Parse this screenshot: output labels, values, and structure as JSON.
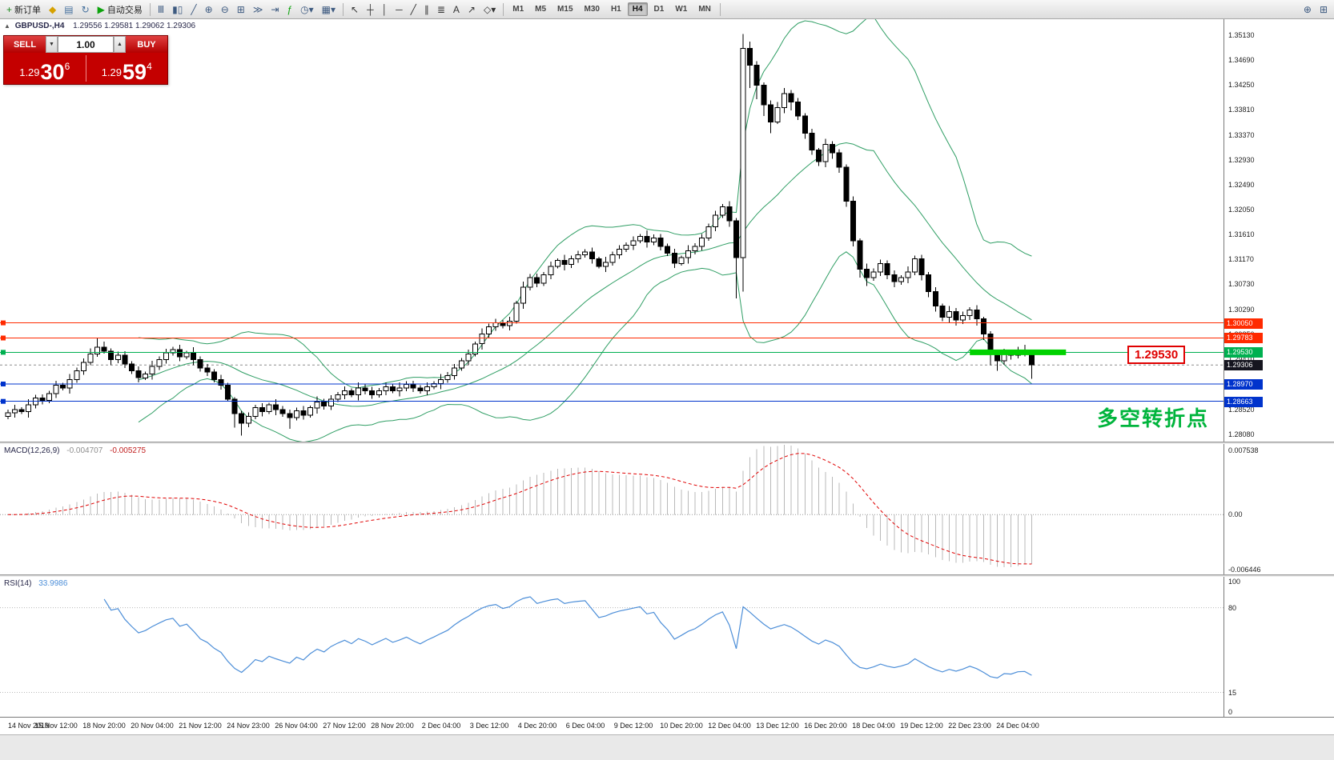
{
  "toolbar": {
    "groups": [
      [
        {
          "name": "new-order-button",
          "icon": "new-order-icon",
          "glyph": "+",
          "color": "#1e8a1e",
          "label": "新订单"
        },
        {
          "name": "chart-window-button",
          "icon": "chart-window-icon",
          "glyph": "◆",
          "color": "#d6a100"
        },
        {
          "name": "profiles-button",
          "icon": "profiles-icon",
          "glyph": "▤",
          "color": "#46719e"
        },
        {
          "name": "refresh-button",
          "icon": "refresh-icon",
          "glyph": "↻",
          "color": "#46719e"
        },
        {
          "name": "autotrading-button",
          "icon": "autotrading-icon",
          "glyph": "▶",
          "color": "#0ca30c",
          "label": "自动交易"
        }
      ],
      [
        {
          "name": "bar-chart-button",
          "icon": "bar-chart-icon",
          "glyph": "Ⅲ",
          "color": "#3d5a80"
        },
        {
          "name": "candlestick-button",
          "icon": "candlestick-icon",
          "glyph": "▮▯",
          "color": "#3d5a80"
        },
        {
          "name": "line-chart-button",
          "icon": "line-chart-icon",
          "glyph": "╱",
          "color": "#3d5a80"
        },
        {
          "name": "zoom-in-button",
          "icon": "zoom-in-icon",
          "glyph": "⊕",
          "color": "#3d5a80"
        },
        {
          "name": "zoom-out-button",
          "icon": "zoom-out-icon",
          "glyph": "⊖",
          "color": "#3d5a80"
        },
        {
          "name": "tile-windows-button",
          "icon": "tile-windows-icon",
          "glyph": "⊞",
          "color": "#3d5a80"
        },
        {
          "name": "auto-scroll-button",
          "icon": "auto-scroll-icon",
          "glyph": "≫",
          "color": "#3d5a80"
        },
        {
          "name": "chart-shift-button",
          "icon": "chart-shift-icon",
          "glyph": "⇥",
          "color": "#3d5a80"
        },
        {
          "name": "indicators-button",
          "icon": "indicators-icon",
          "glyph": "ƒ",
          "color": "#0ca30c"
        },
        {
          "name": "periods-button",
          "icon": "periods-icon",
          "glyph": "◷▾",
          "color": "#3d5a80"
        },
        {
          "name": "templates-button",
          "icon": "templates-icon",
          "glyph": "▦▾",
          "color": "#3d5a80"
        }
      ],
      [
        {
          "name": "cursor-button",
          "icon": "cursor-icon",
          "glyph": "↖",
          "color": "#333333"
        },
        {
          "name": "crosshair-button",
          "icon": "crosshair-icon",
          "glyph": "┼",
          "color": "#333333"
        },
        {
          "name": "vertical-line-button",
          "icon": "vertical-line-icon",
          "glyph": "│",
          "color": "#333333"
        },
        {
          "name": "horizontal-line-button",
          "icon": "horizontal-line-icon",
          "glyph": "─",
          "color": "#333333"
        },
        {
          "name": "trendline-button",
          "icon": "trendline-icon",
          "glyph": "╱",
          "color": "#333333"
        },
        {
          "name": "channel-button",
          "icon": "channel-icon",
          "glyph": "∥",
          "color": "#333333"
        },
        {
          "name": "fibonacci-button",
          "icon": "fibonacci-icon",
          "glyph": "≣",
          "color": "#333333"
        },
        {
          "name": "text-button",
          "icon": "text-icon",
          "glyph": "A",
          "color": "#333333"
        },
        {
          "name": "arrow-button",
          "icon": "arrow-icon",
          "glyph": "↗",
          "color": "#333333"
        },
        {
          "name": "shapes-button",
          "icon": "shapes-icon",
          "glyph": "◇▾",
          "color": "#333333"
        }
      ]
    ],
    "timeframes": [
      "M1",
      "M5",
      "M15",
      "M30",
      "H1",
      "H4",
      "D1",
      "W1",
      "MN"
    ],
    "active_timeframe": "H4",
    "right_icons": [
      {
        "name": "zoom-tool-button",
        "icon": "magnifier-icon",
        "glyph": "⊕"
      },
      {
        "name": "layout-tool-button",
        "icon": "grid-icon",
        "glyph": "⊞"
      }
    ]
  },
  "trade_panel": {
    "sell_label": "SELL",
    "buy_label": "BUY",
    "volume": "1.00",
    "down_icon": "▼",
    "up_icon": "▲",
    "sell_price": {
      "prefix": "1.29",
      "big": "30",
      "sup": "6"
    },
    "buy_price": {
      "prefix": "1.29",
      "big": "59",
      "sup": "4"
    },
    "panel_color": "#c40000"
  },
  "symbol_line": {
    "collapse_icon": "▲",
    "symbol": "GBPUSD-,H4",
    "values": "1.29556 1.29581 1.29062 1.29306"
  },
  "annotation": {
    "text": "多空转折点",
    "color": "#00b43c"
  },
  "callout": {
    "text": "1.29530"
  },
  "chart_data": {
    "type": "candlestick",
    "symbol": "GBPUSD-",
    "timeframe": "H4",
    "price_scale": 0.0001,
    "ylim": [
      1.27953,
      1.35413
    ],
    "y_ticks": [
      "1.35130",
      "1.34690",
      "1.34250",
      "1.33810",
      "1.33370",
      "1.32930",
      "1.32490",
      "1.32050",
      "1.31610",
      "1.31170",
      "1.30730",
      "1.30290",
      "1.29850",
      "1.29410",
      "1.28970",
      "1.28520",
      "1.28080"
    ],
    "candles": [
      [
        12840,
        12852,
        12835,
        12846
      ],
      [
        12846,
        12860,
        12838,
        12852
      ],
      [
        12852,
        12856,
        12844,
        12848
      ],
      [
        12848,
        12870,
        12838,
        12860
      ],
      [
        12860,
        12878,
        12854,
        12872
      ],
      [
        12872,
        12879,
        12861,
        12868
      ],
      [
        12868,
        12885,
        12863,
        12880
      ],
      [
        12880,
        12903,
        12872,
        12895
      ],
      [
        12895,
        12899,
        12886,
        12890
      ],
      [
        12890,
        12915,
        12880,
        12905
      ],
      [
        12905,
        12926,
        12899,
        12920
      ],
      [
        12920,
        12942,
        12913,
        12935
      ],
      [
        12935,
        12960,
        12930,
        12950
      ],
      [
        12950,
        12979,
        12945,
        12962
      ],
      [
        12962,
        12972,
        12951,
        12955
      ],
      [
        12955,
        12960,
        12930,
        12940
      ],
      [
        12940,
        12954,
        12934,
        12948
      ],
      [
        12948,
        12955,
        12925,
        12932
      ],
      [
        12932,
        12937,
        12915,
        12920
      ],
      [
        12920,
        12928,
        12900,
        12908
      ],
      [
        12908,
        12919,
        12904,
        12915
      ],
      [
        12915,
        12938,
        12905,
        12928
      ],
      [
        12928,
        12946,
        12922,
        12940
      ],
      [
        12940,
        12959,
        12933,
        12952
      ],
      [
        12952,
        12963,
        12947,
        12958
      ],
      [
        12958,
        12966,
        12937,
        12945
      ],
      [
        12945,
        12956,
        12941,
        12952
      ],
      [
        12952,
        12962,
        12930,
        12940
      ],
      [
        12940,
        12946,
        12919,
        12925
      ],
      [
        12925,
        12932,
        12911,
        12918
      ],
      [
        12918,
        12923,
        12900,
        12905
      ],
      [
        12905,
        12913,
        12887,
        12895
      ],
      [
        12895,
        12899,
        12866,
        12870
      ],
      [
        12870,
        12874,
        12820,
        12845
      ],
      [
        12845,
        12850,
        12806,
        12828
      ],
      [
        12828,
        12847,
        12821,
        12840
      ],
      [
        12840,
        12860,
        12835,
        12855
      ],
      [
        12855,
        12863,
        12840,
        12848
      ],
      [
        12848,
        12864,
        12844,
        12860
      ],
      [
        12860,
        12870,
        12842,
        12852
      ],
      [
        12852,
        12858,
        12839,
        12845
      ],
      [
        12845,
        12852,
        12818,
        12838
      ],
      [
        12838,
        12855,
        12833,
        12850
      ],
      [
        12850,
        12858,
        12834,
        12842
      ],
      [
        12842,
        12859,
        12838,
        12855
      ],
      [
        12855,
        12875,
        12845,
        12865
      ],
      [
        12865,
        12871,
        12852,
        12858
      ],
      [
        12858,
        12877,
        12851,
        12870
      ],
      [
        12870,
        12883,
        12865,
        12878
      ],
      [
        12878,
        12893,
        12870,
        12885
      ],
      [
        12885,
        12889,
        12874,
        12878
      ],
      [
        12878,
        12900,
        12868,
        12890
      ],
      [
        12890,
        12896,
        12879,
        12885
      ],
      [
        12885,
        12892,
        12871,
        12878
      ],
      [
        12878,
        12890,
        12873,
        12885
      ],
      [
        12885,
        12900,
        12877,
        12892
      ],
      [
        12892,
        12896,
        12881,
        12885
      ],
      [
        12885,
        12900,
        12875,
        12890
      ],
      [
        12890,
        12902,
        12884,
        12896
      ],
      [
        12896,
        12903,
        12883,
        12890
      ],
      [
        12890,
        12895,
        12880,
        12885
      ],
      [
        12885,
        12900,
        12877,
        12892
      ],
      [
        12892,
        12902,
        12888,
        12898
      ],
      [
        12898,
        12915,
        12888,
        12905
      ],
      [
        12905,
        12918,
        12899,
        12912
      ],
      [
        12912,
        12932,
        12905,
        12925
      ],
      [
        12925,
        12943,
        12920,
        12938
      ],
      [
        12938,
        12958,
        12930,
        12950
      ],
      [
        12950,
        12972,
        12946,
        12968
      ],
      [
        12968,
        12995,
        12958,
        12985
      ],
      [
        12985,
        13004,
        12979,
        12998
      ],
      [
        12998,
        13012,
        12991,
        13005
      ],
      [
        13005,
        13010,
        12995,
        13000
      ],
      [
        13000,
        13016,
        12992,
        13008
      ],
      [
        13008,
        13044,
        13004,
        13040
      ],
      [
        13040,
        13078,
        13030,
        13068
      ],
      [
        13068,
        13091,
        13062,
        13085
      ],
      [
        13085,
        13092,
        13068,
        13075
      ],
      [
        13075,
        13095,
        13070,
        13090
      ],
      [
        13090,
        13113,
        13082,
        13105
      ],
      [
        13105,
        13119,
        13101,
        13115
      ],
      [
        13115,
        13125,
        13098,
        13108
      ],
      [
        13108,
        13124,
        13102,
        13118
      ],
      [
        13118,
        13132,
        13111,
        13125
      ],
      [
        13125,
        13135,
        13120,
        13130
      ],
      [
        13130,
        13138,
        13110,
        13118
      ],
      [
        13118,
        13122,
        13101,
        13105
      ],
      [
        13105,
        13122,
        13095,
        13112
      ],
      [
        13112,
        13131,
        13106,
        13125
      ],
      [
        13125,
        13142,
        13118,
        13135
      ],
      [
        13135,
        13147,
        13130,
        13142
      ],
      [
        13142,
        13158,
        13134,
        13150
      ],
      [
        13150,
        13162,
        13146,
        13158
      ],
      [
        13158,
        13168,
        13138,
        13148
      ],
      [
        13148,
        13161,
        13142,
        13155
      ],
      [
        13155,
        13162,
        13133,
        13140
      ],
      [
        13140,
        13145,
        13123,
        13128
      ],
      [
        13128,
        13136,
        13102,
        13110
      ],
      [
        13110,
        13124,
        13106,
        13120
      ],
      [
        13120,
        13142,
        13110,
        13132
      ],
      [
        13132,
        13146,
        13126,
        13140
      ],
      [
        13140,
        13162,
        13133,
        13155
      ],
      [
        13155,
        13180,
        13150,
        13175
      ],
      [
        13175,
        13203,
        13167,
        13195
      ],
      [
        13195,
        13215,
        13190,
        13210
      ],
      [
        13210,
        13220,
        13175,
        13185
      ],
      [
        13185,
        13190,
        13048,
        13120
      ],
      [
        13120,
        13515,
        13060,
        13490
      ],
      [
        13490,
        13502,
        13420,
        13460
      ],
      [
        13460,
        13467,
        13400,
        13425
      ],
      [
        13425,
        13430,
        13370,
        13390
      ],
      [
        13390,
        13398,
        13340,
        13360
      ],
      [
        13360,
        13395,
        13356,
        13385
      ],
      [
        13385,
        13420,
        13375,
        13410
      ],
      [
        13410,
        13416,
        13380,
        13395
      ],
      [
        13395,
        13402,
        13363,
        13370
      ],
      [
        13370,
        13375,
        13330,
        13340
      ],
      [
        13340,
        13348,
        13302,
        13310
      ],
      [
        13310,
        13314,
        13282,
        13290
      ],
      [
        13290,
        13330,
        13280,
        13320
      ],
      [
        13320,
        13326,
        13295,
        13305
      ],
      [
        13305,
        13312,
        13270,
        13280
      ],
      [
        13280,
        13285,
        13210,
        13220
      ],
      [
        13220,
        13228,
        13140,
        13150
      ],
      [
        13150,
        13154,
        13085,
        13100
      ],
      [
        13100,
        13110,
        13070,
        13085
      ],
      [
        13085,
        13101,
        13079,
        13095
      ],
      [
        13095,
        13117,
        13088,
        13110
      ],
      [
        13110,
        13115,
        13082,
        13090
      ],
      [
        13090,
        13098,
        13068,
        13078
      ],
      [
        13078,
        13089,
        13072,
        13085
      ],
      [
        13085,
        13105,
        13075,
        13095
      ],
      [
        13095,
        13124,
        13089,
        13118
      ],
      [
        13118,
        13125,
        13080,
        13090
      ],
      [
        13090,
        13095,
        13050,
        13060
      ],
      [
        13060,
        13068,
        13025,
        13035
      ],
      [
        13035,
        13039,
        13008,
        13015
      ],
      [
        13015,
        13035,
        13005,
        13025
      ],
      [
        13025,
        13031,
        13000,
        13010
      ],
      [
        13010,
        13025,
        13003,
        13018
      ],
      [
        13018,
        13033,
        13010,
        13028
      ],
      [
        13028,
        13036,
        13000,
        13012
      ],
      [
        13012,
        13016,
        12975,
        12985
      ],
      [
        12985,
        12990,
        12930,
        12950
      ],
      [
        12950,
        12956,
        12920,
        12938
      ],
      [
        12938,
        12959,
        12931,
        12952
      ],
      [
        12952,
        12957,
        12940,
        12948
      ],
      [
        12948,
        12963,
        12942,
        12955
      ],
      [
        12955,
        12966,
        12946,
        12956
      ],
      [
        12956,
        12958,
        12906,
        12931
      ]
    ],
    "lines": [
      {
        "price": 1.3005,
        "label": "1.30050",
        "color": "#ff2a00"
      },
      {
        "price": 1.29783,
        "label": "1.29783",
        "color": "#ff2a00"
      },
      {
        "price": 1.2953,
        "label": "1.29530",
        "color": "#00b050"
      },
      {
        "price": 1.2897,
        "label": "1.28970",
        "color": "#0033cc"
      },
      {
        "price": 1.28663,
        "label": "1.28663",
        "color": "#0033cc"
      }
    ],
    "bid": {
      "price": 1.29306,
      "label": "1.29306",
      "color": "#15151f"
    },
    "highlight": {
      "price": 1.2953,
      "from_candle": 140,
      "to_candle": 154,
      "height": 7,
      "color": "#00d200"
    },
    "x_labels": [
      {
        "t": "14 Nov 2019",
        "i": 0
      },
      {
        "t": "15 Nov 12:00",
        "i": 7
      },
      {
        "t": "18 Nov 20:00",
        "i": 14
      },
      {
        "t": "20 Nov 04:00",
        "i": 21
      },
      {
        "t": "21 Nov 12:00",
        "i": 28
      },
      {
        "t": "24 Nov 23:00",
        "i": 35
      },
      {
        "t": "26 Nov 04:00",
        "i": 42
      },
      {
        "t": "27 Nov 12:00",
        "i": 49
      },
      {
        "t": "28 Nov 20:00",
        "i": 56
      },
      {
        "t": "2 Dec 04:00",
        "i": 63
      },
      {
        "t": "3 Dec 12:00",
        "i": 70
      },
      {
        "t": "4 Dec 20:00",
        "i": 77
      },
      {
        "t": "6 Dec 04:00",
        "i": 84
      },
      {
        "t": "9 Dec 12:00",
        "i": 91
      },
      {
        "t": "10 Dec 20:00",
        "i": 98
      },
      {
        "t": "12 Dec 04:00",
        "i": 105
      },
      {
        "t": "13 Dec 12:00",
        "i": 112
      },
      {
        "t": "16 Dec 20:00",
        "i": 119
      },
      {
        "t": "18 Dec 04:00",
        "i": 126
      },
      {
        "t": "19 Dec 12:00",
        "i": 133
      },
      {
        "t": "22 Dec 23:00",
        "i": 140
      },
      {
        "t": "24 Dec 04:00",
        "i": 147
      }
    ],
    "bollinger": {
      "period": 20,
      "deviation": 2,
      "color": "#2f9e64"
    },
    "macd": {
      "name": "MACD(12,26,9)",
      "value_main": "-0.004707",
      "value_signal": "-0.005275",
      "axis": [
        "0.007538",
        "0.00",
        "-0.006446"
      ],
      "ylim": [
        -0.007048,
        0.008337
      ],
      "hist_color": "#b9b9b9",
      "signal_color": "#e00000"
    },
    "rsi": {
      "name": "RSI(14)",
      "value": "33.9986",
      "axis": [
        "100",
        "80",
        "15",
        "0"
      ],
      "levels": [
        80,
        15
      ],
      "color": "#4c8ed8"
    }
  }
}
